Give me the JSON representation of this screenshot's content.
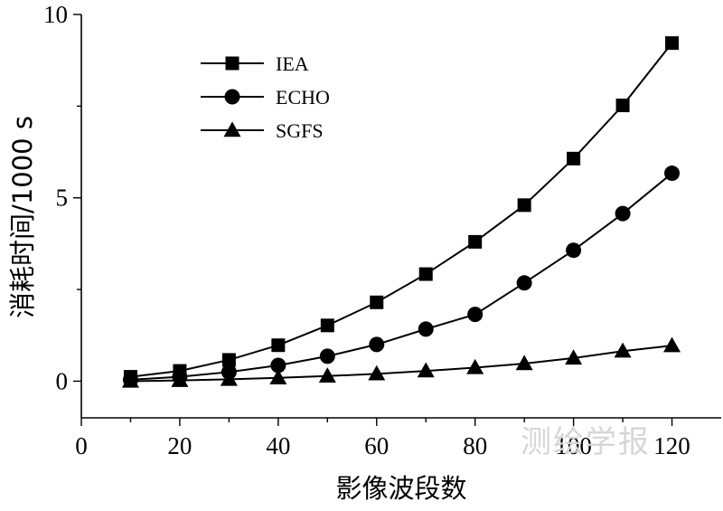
{
  "chart_data": {
    "type": "line",
    "title": "",
    "xlabel": "影像波段数",
    "ylabel": "消耗时间/1000 s",
    "xlim": [
      0,
      130
    ],
    "ylim": [
      -1,
      10
    ],
    "x_ticks": [
      0,
      20,
      40,
      60,
      80,
      100,
      120
    ],
    "y_ticks": [
      0,
      5,
      10
    ],
    "grid": false,
    "legend_position": "top-left",
    "x": [
      10,
      20,
      30,
      40,
      50,
      60,
      70,
      80,
      90,
      100,
      110,
      120
    ],
    "series": [
      {
        "name": "IEA",
        "marker": "square",
        "values": [
          0.12,
          0.28,
          0.58,
          0.98,
          1.52,
          2.15,
          2.92,
          3.8,
          4.8,
          6.07,
          7.52,
          9.22
        ]
      },
      {
        "name": "ECHO",
        "marker": "circle",
        "values": [
          0.04,
          0.12,
          0.25,
          0.43,
          0.68,
          1.0,
          1.42,
          1.82,
          2.68,
          3.57,
          4.57,
          5.67
        ]
      },
      {
        "name": "SGFS",
        "marker": "triangle",
        "values": [
          0.0,
          0.02,
          0.05,
          0.09,
          0.14,
          0.2,
          0.28,
          0.37,
          0.48,
          0.63,
          0.82,
          0.97
        ]
      }
    ]
  },
  "watermark": "测绘学报",
  "colors": {
    "ink": "#000000",
    "watermark": "#d6d6d6"
  }
}
